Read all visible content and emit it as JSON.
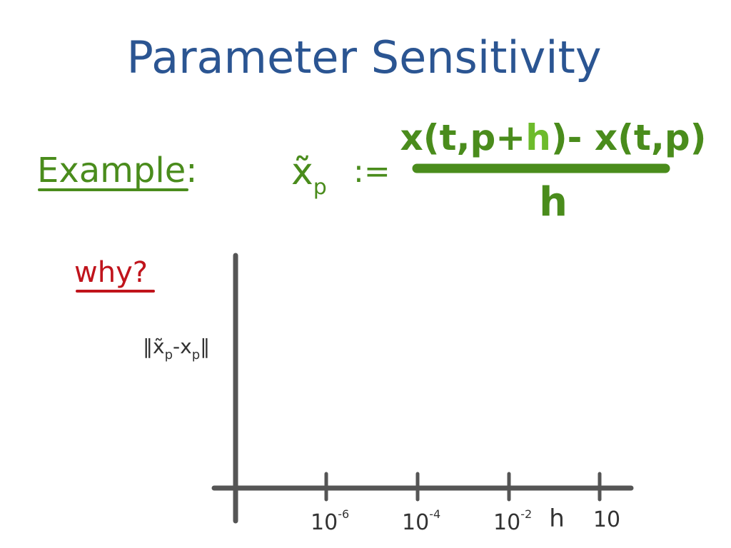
{
  "title": "Parameter Sensitivity",
  "example": {
    "label": "Example:",
    "lhs": {
      "symbol": "x̃",
      "subscript": "p"
    },
    "assign": ":=",
    "numerator": {
      "before": "x(t,p+",
      "highlight": "h",
      "after": ")- x(t,p)"
    },
    "denominator": "h"
  },
  "question": "why?",
  "sketch": {
    "y_label": {
      "open": "‖",
      "symbol1": "x̃",
      "subscript1": "p",
      "minus": "-",
      "symbol2": "x",
      "subscript2": "p",
      "close": "‖"
    },
    "x_ticks": [
      {
        "base": "10",
        "exponent": "-6"
      },
      {
        "base": "10",
        "exponent": "-4"
      },
      {
        "base": "10",
        "exponent": "-2"
      }
    ],
    "x_label": "h",
    "last_tick": "10"
  }
}
